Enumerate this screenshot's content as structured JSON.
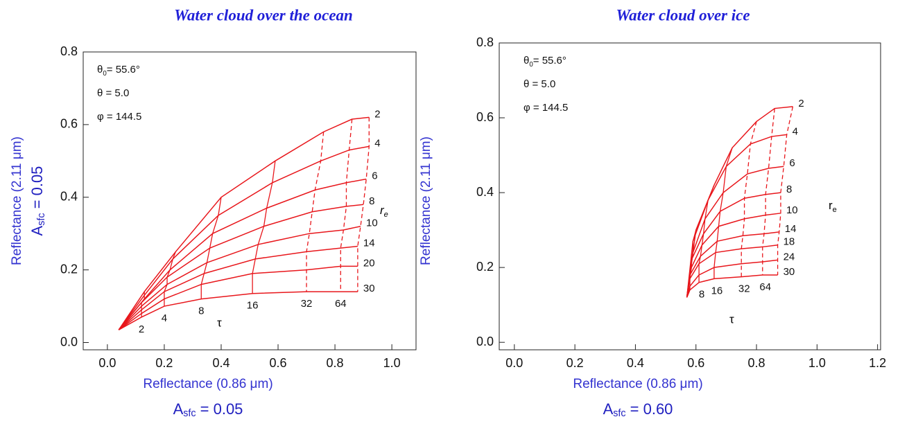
{
  "chart_data": [
    {
      "type": "lookup-grid",
      "title": "Water cloud over the ocean",
      "y_label": "Reflectance  (2.11 μm)",
      "x_label": "Reflectance (0.86 μm)",
      "albedo": {
        "symbol": "A",
        "sub": "sfc",
        "text": " = 0.05"
      },
      "params": [
        {
          "symbol": "θ",
          "sub": "0",
          "text": "= 55.6°"
        },
        {
          "symbol": "θ = 5.0"
        },
        {
          "symbol": "φ = 144.5"
        }
      ],
      "re_label": {
        "symbol": "r",
        "sub": "e"
      },
      "tau_symbol": "τ",
      "tau_labels": [
        null,
        2,
        4,
        8,
        16,
        32,
        64,
        null
      ],
      "color": "#e8161b",
      "xlim": [
        -0.085,
        1.085
      ],
      "ylim": [
        -0.02,
        0.8
      ],
      "xticks": [
        {
          "value": 0,
          "label": "0.0"
        },
        0.2,
        0.4,
        0.6,
        0.8,
        {
          "value": 1,
          "label": "1.0"
        }
      ],
      "yticks": [
        {
          "value": 0,
          "label": "0.0"
        },
        0.2,
        0.4,
        0.6,
        0.8
      ],
      "series": [
        {
          "name": "2",
          "x": [
            0.04,
            0.13,
            0.24,
            0.4,
            0.59,
            0.76,
            0.86,
            0.92
          ],
          "values": [
            0.035,
            0.14,
            0.25,
            0.4,
            0.5,
            0.58,
            0.615,
            0.62
          ]
        },
        {
          "name": "4",
          "x": [
            0.04,
            0.13,
            0.23,
            0.39,
            0.58,
            0.75,
            0.85,
            0.92
          ],
          "values": [
            0.035,
            0.13,
            0.23,
            0.35,
            0.44,
            0.5,
            0.53,
            0.54
          ]
        },
        {
          "name": "6",
          "x": [
            0.04,
            0.13,
            0.22,
            0.37,
            0.56,
            0.73,
            0.84,
            0.91
          ],
          "values": [
            0.035,
            0.12,
            0.2,
            0.3,
            0.37,
            0.42,
            0.44,
            0.45
          ]
        },
        {
          "name": "8",
          "x": [
            0.04,
            0.12,
            0.21,
            0.36,
            0.55,
            0.72,
            0.84,
            0.9
          ],
          "values": [
            0.035,
            0.11,
            0.18,
            0.26,
            0.32,
            0.36,
            0.375,
            0.38
          ]
        },
        {
          "name": "10",
          "x": [
            0.04,
            0.12,
            0.21,
            0.35,
            0.53,
            0.71,
            0.83,
            0.89
          ],
          "values": [
            0.035,
            0.1,
            0.16,
            0.22,
            0.27,
            0.3,
            0.31,
            0.32
          ]
        },
        {
          "name": "14",
          "x": [
            0.04,
            0.12,
            0.2,
            0.34,
            0.52,
            0.7,
            0.82,
            0.88
          ],
          "values": [
            0.035,
            0.09,
            0.14,
            0.19,
            0.23,
            0.25,
            0.26,
            0.265
          ]
        },
        {
          "name": "20",
          "x": [
            0.04,
            0.12,
            0.2,
            0.33,
            0.51,
            0.7,
            0.82,
            0.88
          ],
          "values": [
            0.035,
            0.08,
            0.12,
            0.16,
            0.19,
            0.2,
            0.21,
            0.21
          ]
        },
        {
          "name": "30",
          "x": [
            0.04,
            0.12,
            0.2,
            0.33,
            0.51,
            0.7,
            0.82,
            0.88
          ],
          "values": [
            0.035,
            0.07,
            0.1,
            0.12,
            0.135,
            0.14,
            0.14,
            0.14
          ]
        }
      ]
    },
    {
      "type": "lookup-grid",
      "title": "Water cloud over ice",
      "y_label": "Reflectance  (2.11 μm)",
      "x_label": "Reflectance (0.86 μm)",
      "albedo": {
        "symbol": "A",
        "sub": "sfc",
        "text": " = 0.60"
      },
      "params": [
        {
          "symbol": "θ",
          "sub": "0",
          "text": "= 55.6°"
        },
        {
          "symbol": "θ = 5.0"
        },
        {
          "symbol": "φ = 144.5"
        }
      ],
      "re_label": {
        "symbol": "r",
        "sub": "e"
      },
      "tau_symbol": "τ",
      "tau_labels": [
        null,
        null,
        8,
        16,
        32,
        64,
        null
      ],
      "color": "#e8161b",
      "xlim": [
        -0.05,
        1.21
      ],
      "ylim": [
        -0.02,
        0.8
      ],
      "xticks": [
        {
          "value": 0,
          "label": "0.0"
        },
        0.2,
        0.4,
        0.6,
        0.8,
        {
          "value": 1,
          "label": "1.0"
        },
        1.2
      ],
      "yticks": [
        {
          "value": 0,
          "label": "0.0"
        },
        0.2,
        0.4,
        0.6,
        0.8
      ],
      "series": [
        {
          "name": "2",
          "x": [
            0.57,
            0.6,
            0.66,
            0.72,
            0.8,
            0.86,
            0.92
          ],
          "values": [
            0.12,
            0.3,
            0.42,
            0.52,
            0.59,
            0.625,
            0.63
          ]
        },
        {
          "name": "4",
          "x": [
            0.57,
            0.59,
            0.64,
            0.7,
            0.78,
            0.85,
            0.9
          ],
          "values": [
            0.12,
            0.27,
            0.38,
            0.47,
            0.53,
            0.55,
            0.555
          ]
        },
        {
          "name": "6",
          "x": [
            0.57,
            0.59,
            0.63,
            0.69,
            0.77,
            0.84,
            0.89
          ],
          "values": [
            0.12,
            0.24,
            0.33,
            0.4,
            0.45,
            0.465,
            0.47
          ]
        },
        {
          "name": "8",
          "x": [
            0.57,
            0.585,
            0.625,
            0.68,
            0.76,
            0.83,
            0.88
          ],
          "values": [
            0.12,
            0.22,
            0.29,
            0.35,
            0.385,
            0.395,
            0.4
          ]
        },
        {
          "name": "10",
          "x": [
            0.57,
            0.585,
            0.62,
            0.675,
            0.76,
            0.83,
            0.88
          ],
          "values": [
            0.12,
            0.2,
            0.26,
            0.31,
            0.33,
            0.34,
            0.345
          ]
        },
        {
          "name": "14",
          "x": [
            0.57,
            0.58,
            0.615,
            0.67,
            0.755,
            0.825,
            0.875
          ],
          "values": [
            0.12,
            0.18,
            0.23,
            0.27,
            0.285,
            0.29,
            0.295
          ]
        },
        {
          "name": "18",
          "x": [
            0.57,
            0.58,
            0.61,
            0.665,
            0.75,
            0.82,
            0.87
          ],
          "values": [
            0.12,
            0.17,
            0.21,
            0.24,
            0.25,
            0.255,
            0.26
          ]
        },
        {
          "name": "24",
          "x": [
            0.57,
            0.58,
            0.61,
            0.66,
            0.75,
            0.82,
            0.87
          ],
          "values": [
            0.12,
            0.15,
            0.18,
            0.2,
            0.21,
            0.215,
            0.22
          ]
        },
        {
          "name": "30",
          "x": [
            0.57,
            0.58,
            0.61,
            0.66,
            0.75,
            0.82,
            0.87
          ],
          "values": [
            0.12,
            0.14,
            0.16,
            0.17,
            0.175,
            0.18,
            0.18
          ]
        }
      ]
    }
  ]
}
